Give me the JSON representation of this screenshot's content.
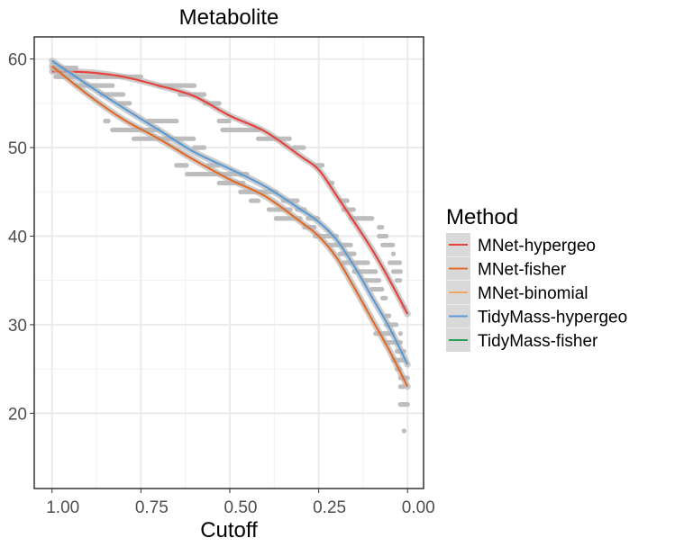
{
  "chart_data": {
    "type": "scatter",
    "title": "Metabolite",
    "xlabel": "Cutoff",
    "ylabel": "",
    "xlim": [
      1.05,
      -0.045
    ],
    "ylim": [
      11.5,
      62.5
    ],
    "x_reversed": true,
    "xticks": [
      1.0,
      0.75,
      0.5,
      0.25,
      0.0
    ],
    "xtick_labels": [
      "1.00",
      "0.75",
      "0.50",
      "0.25",
      "0.00"
    ],
    "yticks": [
      20,
      30,
      40,
      50,
      60
    ],
    "ytick_labels": [
      "20",
      "30",
      "40",
      "50",
      "60"
    ],
    "grid": true,
    "legend": {
      "title": "Method",
      "placement": "right",
      "entries": [
        {
          "name": "MNet-hypergeo",
          "color": "#e8423c"
        },
        {
          "name": "MNet-fisher",
          "color": "#e36b2a"
        },
        {
          "name": "MNet-binomial",
          "color": "#f2a95e"
        },
        {
          "name": "TidyMass-hypergeo",
          "color": "#5b9bd5"
        },
        {
          "name": "TidyMass-fisher",
          "color": "#2ca05a"
        }
      ]
    },
    "series": [
      {
        "name": "MNet-hypergeo",
        "color": "#e8423c",
        "x": [
          1.0,
          0.9,
          0.8,
          0.7,
          0.6,
          0.5,
          0.4,
          0.3,
          0.25,
          0.2,
          0.15,
          0.1,
          0.05,
          0.0
        ],
        "y": [
          58.6,
          58.5,
          58.0,
          57.0,
          55.8,
          53.6,
          51.8,
          49.0,
          47.5,
          44.6,
          41.6,
          38.5,
          35.0,
          31.2
        ]
      },
      {
        "name": "MNet-fisher",
        "color": "#e36b2a",
        "x": [
          1.0,
          0.9,
          0.8,
          0.7,
          0.6,
          0.5,
          0.4,
          0.3,
          0.25,
          0.2,
          0.15,
          0.1,
          0.05,
          0.0
        ],
        "y": [
          59.2,
          56.0,
          53.2,
          51.0,
          48.6,
          46.4,
          44.5,
          41.6,
          40.0,
          37.6,
          34.2,
          30.6,
          27.0,
          23.0
        ]
      },
      {
        "name": "TidyMass-hypergeo",
        "color": "#5b9bd5",
        "x": [
          1.0,
          0.9,
          0.8,
          0.7,
          0.6,
          0.5,
          0.4,
          0.3,
          0.25,
          0.2,
          0.15,
          0.1,
          0.05,
          0.0
        ],
        "y": [
          59.8,
          57.1,
          54.5,
          52.0,
          49.5,
          47.6,
          45.6,
          43.0,
          41.6,
          39.6,
          36.6,
          33.1,
          29.6,
          25.5
        ]
      }
    ],
    "point_runs": [
      [
        1.0,
        0.93,
        59
      ],
      [
        0.99,
        0.87,
        58
      ],
      [
        0.75,
        0.87,
        58
      ],
      [
        0.93,
        0.83,
        57
      ],
      [
        0.7,
        0.6,
        57
      ],
      [
        0.86,
        0.8,
        56
      ],
      [
        0.64,
        0.57,
        56
      ],
      [
        0.81,
        0.78,
        55
      ],
      [
        0.57,
        0.53,
        55
      ],
      [
        0.85,
        0.84,
        53
      ],
      [
        0.73,
        0.65,
        53
      ],
      [
        0.53,
        0.5,
        53
      ],
      [
        0.83,
        0.7,
        52
      ],
      [
        0.52,
        0.42,
        52
      ],
      [
        0.77,
        0.6,
        51
      ],
      [
        0.42,
        0.33,
        51
      ],
      [
        0.6,
        0.57,
        50
      ],
      [
        0.32,
        0.29,
        50
      ],
      [
        0.65,
        0.62,
        48
      ],
      [
        0.56,
        0.53,
        48
      ],
      [
        0.26,
        0.24,
        48
      ],
      [
        0.62,
        0.45,
        47
      ],
      [
        0.53,
        0.46,
        46
      ],
      [
        0.22,
        0.21,
        46
      ],
      [
        0.47,
        0.37,
        45
      ],
      [
        0.44,
        0.42,
        44
      ],
      [
        0.35,
        0.31,
        44
      ],
      [
        0.19,
        0.17,
        44
      ],
      [
        0.39,
        0.33,
        43
      ],
      [
        0.31,
        0.29,
        43
      ],
      [
        0.18,
        0.15,
        43
      ],
      [
        0.37,
        0.3,
        42
      ],
      [
        0.28,
        0.25,
        42
      ],
      [
        0.16,
        0.1,
        42
      ],
      [
        0.29,
        0.26,
        41
      ],
      [
        0.08,
        0.07,
        41
      ],
      [
        0.26,
        0.2,
        40
      ],
      [
        0.22,
        0.16,
        39
      ],
      [
        0.08,
        0.06,
        40
      ],
      [
        0.07,
        0.04,
        39
      ],
      [
        0.19,
        0.15,
        38
      ],
      [
        0.04,
        0.04,
        38
      ],
      [
        0.18,
        0.11,
        37
      ],
      [
        0.05,
        0.02,
        37
      ],
      [
        0.15,
        0.09,
        36
      ],
      [
        0.04,
        0.02,
        36
      ],
      [
        0.12,
        0.08,
        35
      ],
      [
        0.03,
        0.02,
        35
      ],
      [
        0.1,
        0.07,
        34
      ],
      [
        0.07,
        0.06,
        33
      ],
      [
        0.06,
        0.05,
        31
      ],
      [
        0.01,
        0.01,
        32
      ],
      [
        0.06,
        0.03,
        30
      ],
      [
        0.09,
        0.04,
        29
      ],
      [
        0.02,
        0.02,
        29
      ],
      [
        0.06,
        0.02,
        28
      ],
      [
        0.03,
        0.01,
        27
      ],
      [
        0.04,
        0.01,
        26
      ],
      [
        0.03,
        0.02,
        25
      ],
      [
        0.02,
        0.0,
        24
      ],
      [
        0.02,
        0.01,
        23
      ],
      [
        0.02,
        0.0,
        21
      ],
      [
        0.01,
        0.01,
        18
      ]
    ]
  }
}
